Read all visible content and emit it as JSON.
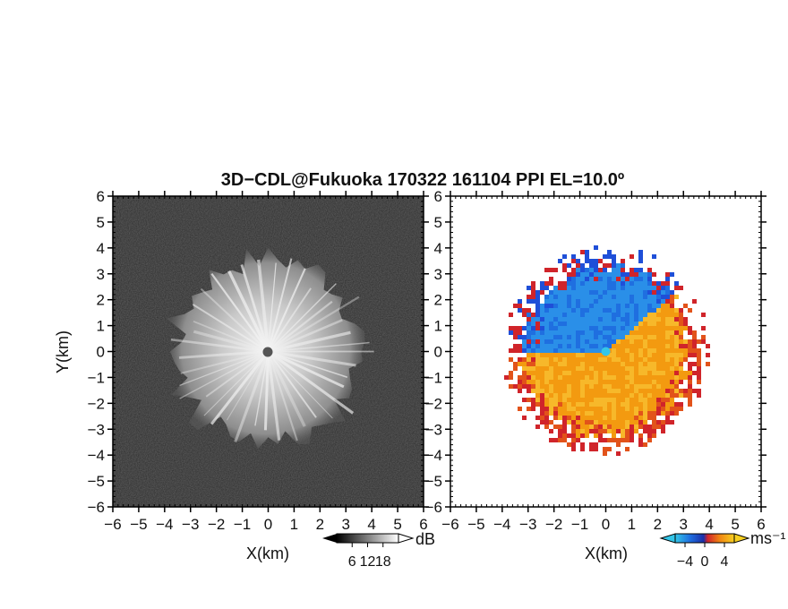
{
  "chart_data": [
    {
      "type": "heatmap",
      "title": "3D−CDL@Fukuoka 170322 161104 PPI EL=10.0º",
      "field": "backscatter intensity",
      "xlabel": "X(km)",
      "ylabel": "Y(km)",
      "xlim": [
        -6,
        6
      ],
      "ylim": [
        -6,
        6
      ],
      "xticks": [
        "−6",
        "−5",
        "−4",
        "−3",
        "−2",
        "−1",
        "0",
        "1",
        "2",
        "3",
        "4",
        "5",
        "6"
      ],
      "yticks": [
        "6",
        "5",
        "4",
        "3",
        "2",
        "1",
        "0",
        "−1",
        "−2",
        "−3",
        "−4",
        "−5",
        "−6"
      ],
      "colorbar": {
        "unit": "dB",
        "ticks": [
          "6",
          "12",
          "18"
        ],
        "range": [
          0,
          24
        ],
        "colormap": "greyscale"
      },
      "echo_radius_km": 3.6,
      "radar_site": [
        0,
        0
      ]
    },
    {
      "type": "heatmap",
      "field": "radial Doppler velocity",
      "xlabel": "X(km)",
      "xlim": [
        -6,
        6
      ],
      "ylim": [
        -6,
        6
      ],
      "xticks": [
        "−6",
        "−5",
        "−4",
        "−3",
        "−2",
        "−1",
        "0",
        "1",
        "2",
        "3",
        "4",
        "5",
        "6"
      ],
      "yticks": [
        "6",
        "5",
        "4",
        "3",
        "2",
        "1",
        "0",
        "−1",
        "−2",
        "−3",
        "−4",
        "−5",
        "−6"
      ],
      "colorbar": {
        "unit": "ms⁻¹",
        "ticks": [
          "−4",
          "0",
          "4"
        ],
        "range": [
          -6,
          6
        ],
        "colormap": "blue-red"
      },
      "approach_color": "#1f6fe0",
      "recede_color": "#f39a10",
      "echo_radius_km": 3.7
    }
  ]
}
